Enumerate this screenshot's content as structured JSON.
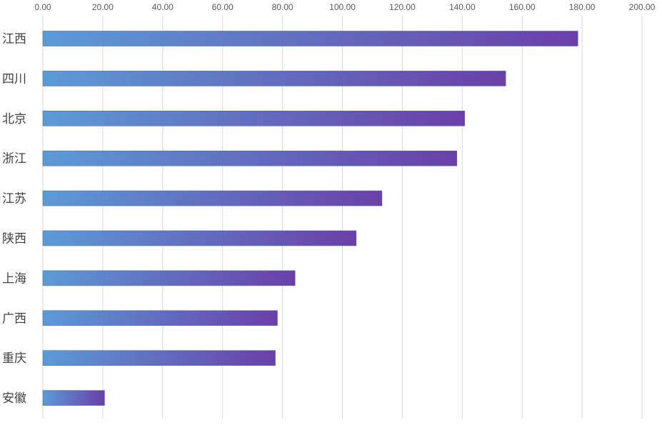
{
  "chart_data": {
    "type": "bar",
    "orientation": "horizontal",
    "title": "",
    "xlabel": "",
    "ylabel": "",
    "xlim": [
      0,
      200
    ],
    "x_ticks": [
      "0.00",
      "20.00",
      "40.00",
      "60.00",
      "80.00",
      "100.00",
      "120.00",
      "140.00",
      "160.00",
      "180.00",
      "200.00"
    ],
    "x_axis_position": "top",
    "grid": "vertical",
    "legend": "none",
    "categories": [
      "江西",
      "四川",
      "北京",
      "浙江",
      "江苏",
      "陕西",
      "上海",
      "广西",
      "重庆",
      "安徽"
    ],
    "values": [
      178.6,
      154.5,
      140.8,
      138.2,
      113.2,
      104.6,
      84.2,
      78.3,
      77.6,
      20.6
    ],
    "colors": {
      "bar_gradient_start": "#5b9bd5",
      "bar_gradient_end": "#6a3fa8",
      "grid": "#d9d9d9",
      "tick_text": "#595959",
      "category_text": "#404040"
    }
  }
}
